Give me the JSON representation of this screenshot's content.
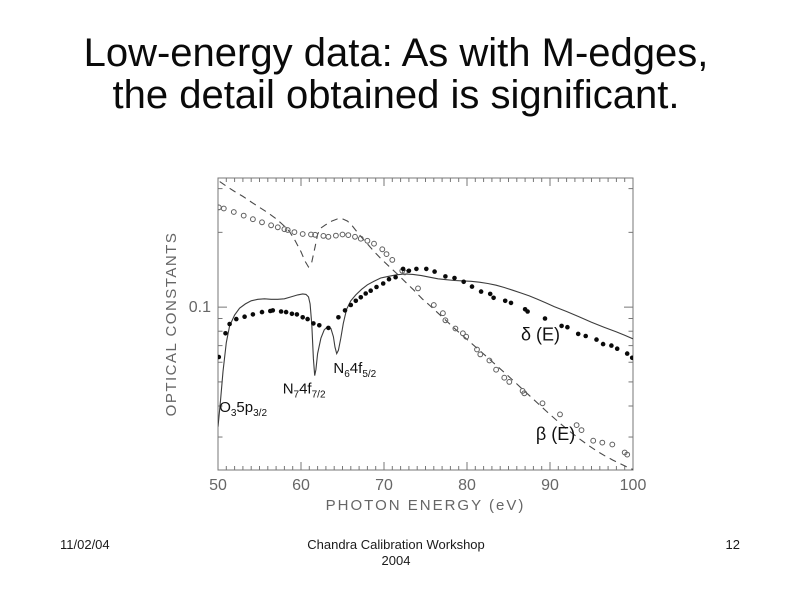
{
  "slide": {
    "title_line1": "Low-energy data: As with M-edges,",
    "title_line2": "the detail obtained is significant.",
    "footer": {
      "date": "11/02/04",
      "center_line1": "Chandra Calibration Workshop",
      "center_line2": "2004",
      "page_number": "12"
    }
  },
  "colors": {
    "axis": "#777777",
    "tick_label": "#666666",
    "axis_title": "#666666",
    "solid_line": "#3c3c3c",
    "dashed_line": "#4a4a4a",
    "filled_marker": "#0a0a0a",
    "open_marker": "#5f5f5f",
    "annotation_text": "#111111"
  },
  "chart_data": {
    "type": "line",
    "title": "",
    "xlabel": "PHOTON ENERGY (eV)",
    "ylabel": "OPTICAL CONSTANTS",
    "xlim": [
      50,
      100
    ],
    "ylim": [
      0.0221,
      0.331
    ],
    "yscale": "log",
    "grid": false,
    "legend_position": "in-plot annotations",
    "x_major_ticks": [
      50,
      60,
      70,
      80,
      90,
      100
    ],
    "x_major_tick_labels": [
      "50",
      "60",
      "70",
      "80",
      "90",
      "100"
    ],
    "x_minor_step": 1,
    "y_major_ticks": [
      0.1
    ],
    "y_major_tick_labels": [
      "0.1"
    ],
    "y_minor_ticks": [
      0.03,
      0.04,
      0.05,
      0.06,
      0.07,
      0.08,
      0.09,
      0.2,
      0.3
    ],
    "series": [
      {
        "name": "beta-model",
        "label": "β(E) model (dashed line)",
        "style": "line-dashed",
        "points": [
          [
            50.2,
            0.32
          ],
          [
            51,
            0.307
          ],
          [
            52,
            0.292
          ],
          [
            53,
            0.279
          ],
          [
            54,
            0.265
          ],
          [
            55,
            0.252
          ],
          [
            56,
            0.24
          ],
          [
            57,
            0.227
          ],
          [
            57.8,
            0.215
          ],
          [
            58.6,
            0.202
          ],
          [
            59.3,
            0.185
          ],
          [
            60,
            0.167
          ],
          [
            60.5,
            0.153
          ],
          [
            60.9,
            0.145
          ],
          [
            61.3,
            0.152
          ],
          [
            61.7,
            0.175
          ],
          [
            62,
            0.196
          ],
          [
            62.3,
            0.207
          ],
          [
            63,
            0.215
          ],
          [
            63.7,
            0.222
          ],
          [
            64.4,
            0.2265
          ],
          [
            65,
            0.2265
          ],
          [
            65.6,
            0.222
          ],
          [
            66.2,
            0.212
          ],
          [
            67,
            0.196
          ],
          [
            67.8,
            0.183
          ],
          [
            68.7,
            0.169
          ],
          [
            69.6,
            0.157
          ],
          [
            70.6,
            0.146
          ],
          [
            71.6,
            0.136
          ],
          [
            72.6,
            0.126
          ],
          [
            73.6,
            0.117
          ],
          [
            74.6,
            0.108
          ],
          [
            75.6,
            0.101
          ],
          [
            76.6,
            0.094
          ],
          [
            77.6,
            0.0875
          ],
          [
            78.6,
            0.0815
          ],
          [
            79.6,
            0.0762
          ],
          [
            80.6,
            0.0712
          ],
          [
            81.6,
            0.0665
          ],
          [
            82.6,
            0.0622
          ],
          [
            83.6,
            0.058
          ],
          [
            84.6,
            0.0542
          ],
          [
            85.6,
            0.0505
          ],
          [
            86.6,
            0.047
          ],
          [
            87.6,
            0.0438
          ],
          [
            88.6,
            0.0408
          ],
          [
            89.6,
            0.038
          ],
          [
            90.6,
            0.0355
          ],
          [
            91.6,
            0.0332
          ],
          [
            92.6,
            0.0312
          ],
          [
            93.6,
            0.0294
          ],
          [
            94.6,
            0.0278
          ],
          [
            95.6,
            0.0264
          ],
          [
            96.6,
            0.0252
          ],
          [
            97.6,
            0.0242
          ],
          [
            98.6,
            0.0233
          ],
          [
            99.3,
            0.0227
          ],
          [
            100,
            0.0222
          ]
        ]
      },
      {
        "name": "delta-model",
        "label": "δ(E) model (solid line)",
        "style": "line-solid",
        "points": [
          [
            50,
            0.033
          ],
          [
            50.3,
            0.042
          ],
          [
            50.6,
            0.055
          ],
          [
            51,
            0.072
          ],
          [
            51.4,
            0.084
          ],
          [
            52,
            0.093
          ],
          [
            52.6,
            0.099
          ],
          [
            53.3,
            0.103
          ],
          [
            54,
            0.106
          ],
          [
            54.8,
            0.1075
          ],
          [
            55.6,
            0.108
          ],
          [
            56.4,
            0.1075
          ],
          [
            57.2,
            0.1075
          ],
          [
            58,
            0.108
          ],
          [
            58.8,
            0.11
          ],
          [
            59.6,
            0.112
          ],
          [
            60.2,
            0.113
          ],
          [
            60.6,
            0.1125
          ],
          [
            60.9,
            0.11
          ],
          [
            61.1,
            0.103
          ],
          [
            61.3,
            0.085
          ],
          [
            61.5,
            0.062
          ],
          [
            61.65,
            0.053
          ],
          [
            61.8,
            0.056
          ],
          [
            62,
            0.065
          ],
          [
            62.4,
            0.075
          ],
          [
            62.8,
            0.081
          ],
          [
            63.2,
            0.0835
          ],
          [
            63.6,
            0.082
          ],
          [
            63.9,
            0.076
          ],
          [
            64.1,
            0.069
          ],
          [
            64.3,
            0.065
          ],
          [
            64.5,
            0.067
          ],
          [
            64.8,
            0.075
          ],
          [
            65.1,
            0.086
          ],
          [
            65.5,
            0.098
          ],
          [
            66,
            0.106
          ],
          [
            66.6,
            0.112
          ],
          [
            67.3,
            0.118
          ],
          [
            68,
            0.123
          ],
          [
            68.8,
            0.127
          ],
          [
            69.6,
            0.131
          ],
          [
            70.5,
            0.133
          ],
          [
            71.5,
            0.135
          ],
          [
            72.5,
            0.136
          ],
          [
            73.5,
            0.1355
          ],
          [
            74.5,
            0.134
          ],
          [
            75.5,
            0.132
          ],
          [
            76.5,
            0.13
          ],
          [
            77.5,
            0.129
          ],
          [
            78.5,
            0.128
          ],
          [
            79.5,
            0.1275
          ],
          [
            80.5,
            0.127
          ],
          [
            81.5,
            0.126
          ],
          [
            82.5,
            0.1245
          ],
          [
            83.5,
            0.1225
          ],
          [
            84.5,
            0.12
          ],
          [
            85.5,
            0.117
          ],
          [
            86.5,
            0.114
          ],
          [
            87.5,
            0.111
          ],
          [
            88.5,
            0.1075
          ],
          [
            89.5,
            0.104
          ],
          [
            90.5,
            0.1005
          ],
          [
            92,
            0.096
          ],
          [
            93.5,
            0.0915
          ],
          [
            95,
            0.087
          ],
          [
            96.5,
            0.083
          ],
          [
            98,
            0.0795
          ],
          [
            99,
            0.077
          ],
          [
            100,
            0.0745
          ]
        ]
      },
      {
        "name": "beta-measured",
        "label": "β(E) measured (open circles)",
        "style": "scatter-open",
        "points": [
          [
            50.1,
            0.252
          ],
          [
            50.7,
            0.2495
          ],
          [
            51.9,
            0.2415
          ],
          [
            53.1,
            0.2335
          ],
          [
            54.2,
            0.226
          ],
          [
            55.3,
            0.2195
          ],
          [
            56.4,
            0.2135
          ],
          [
            57.2,
            0.2095
          ],
          [
            58,
            0.206
          ],
          [
            58.4,
            0.2045
          ],
          [
            59.2,
            0.2005
          ],
          [
            60.2,
            0.197
          ],
          [
            61.2,
            0.196
          ],
          [
            61.7,
            0.1955
          ],
          [
            62.7,
            0.1935
          ],
          [
            63.3,
            0.192
          ],
          [
            64.2,
            0.194
          ],
          [
            65,
            0.196
          ],
          [
            65.7,
            0.195
          ],
          [
            66.5,
            0.192
          ],
          [
            67.2,
            0.1885
          ],
          [
            68,
            0.185
          ],
          [
            68.8,
            0.18
          ],
          [
            69.8,
            0.171
          ],
          [
            70.3,
            0.1635
          ],
          [
            71,
            0.155
          ],
          [
            72.2,
            0.14
          ],
          [
            72.5,
            0.138
          ],
          [
            74.1,
            0.119
          ],
          [
            76,
            0.102
          ],
          [
            77.1,
            0.0945
          ],
          [
            77.4,
            0.0885
          ],
          [
            78.6,
            0.082
          ],
          [
            79.5,
            0.0785
          ],
          [
            79.9,
            0.076
          ],
          [
            81.2,
            0.0675
          ],
          [
            81.6,
            0.0645
          ],
          [
            82.7,
            0.061
          ],
          [
            83.5,
            0.056
          ],
          [
            84.5,
            0.052
          ],
          [
            85.1,
            0.05
          ],
          [
            86.7,
            0.046
          ],
          [
            86.9,
            0.045
          ],
          [
            89.1,
            0.041
          ],
          [
            91.2,
            0.037
          ],
          [
            93.2,
            0.0335
          ],
          [
            93.8,
            0.032
          ],
          [
            95.2,
            0.029
          ],
          [
            96.3,
            0.0285
          ],
          [
            97.5,
            0.028
          ],
          [
            99,
            0.026
          ],
          [
            99.3,
            0.0255
          ]
        ]
      },
      {
        "name": "delta-measured",
        "label": "δ(E) measured (filled circles)",
        "style": "scatter-filled",
        "points": [
          [
            50.1,
            0.063
          ],
          [
            50.9,
            0.0785
          ],
          [
            51.4,
            0.0855
          ],
          [
            52.2,
            0.0895
          ],
          [
            53.2,
            0.0915
          ],
          [
            54.2,
            0.0935
          ],
          [
            55.3,
            0.0955
          ],
          [
            56.3,
            0.0965
          ],
          [
            56.6,
            0.097
          ],
          [
            57.6,
            0.096
          ],
          [
            58.2,
            0.0955
          ],
          [
            58.9,
            0.094
          ],
          [
            59.5,
            0.0935
          ],
          [
            60.2,
            0.091
          ],
          [
            60.8,
            0.0895
          ],
          [
            61.5,
            0.086
          ],
          [
            62.2,
            0.0845
          ],
          [
            63.3,
            0.0825
          ],
          [
            64.5,
            0.091
          ],
          [
            65.3,
            0.097
          ],
          [
            66,
            0.102
          ],
          [
            66.6,
            0.106
          ],
          [
            67.2,
            0.1095
          ],
          [
            67.8,
            0.1135
          ],
          [
            68.4,
            0.1165
          ],
          [
            69.1,
            0.1205
          ],
          [
            69.9,
            0.1245
          ],
          [
            70.6,
            0.1295
          ],
          [
            71.4,
            0.132
          ],
          [
            72.3,
            0.1425
          ],
          [
            73,
            0.14
          ],
          [
            73.9,
            0.1425
          ],
          [
            75.1,
            0.1425
          ],
          [
            76.1,
            0.139
          ],
          [
            77.4,
            0.133
          ],
          [
            78.5,
            0.131
          ],
          [
            79.6,
            0.1265
          ],
          [
            80.6,
            0.121
          ],
          [
            81.7,
            0.1155
          ],
          [
            82.8,
            0.113
          ],
          [
            83.2,
            0.109
          ],
          [
            84.6,
            0.106
          ],
          [
            85.3,
            0.104
          ],
          [
            87,
            0.098
          ],
          [
            87.3,
            0.096
          ],
          [
            89.4,
            0.09
          ],
          [
            91.4,
            0.084
          ],
          [
            92.1,
            0.083
          ],
          [
            93.4,
            0.078
          ],
          [
            94.3,
            0.0765
          ],
          [
            95.6,
            0.074
          ],
          [
            96.4,
            0.071
          ],
          [
            97.4,
            0.07
          ],
          [
            98.1,
            0.068
          ],
          [
            99.3,
            0.065
          ],
          [
            99.9,
            0.0625
          ]
        ]
      }
    ],
    "annotations": [
      {
        "id": "edge-o3-5p32",
        "x": 50.15,
        "y": 0.0378,
        "font": 15,
        "parts": [
          {
            "t": "O"
          },
          {
            "t": "3",
            "sub": true
          },
          {
            "t": "5p"
          },
          {
            "t": "3/2",
            "sub": true
          }
        ]
      },
      {
        "id": "edge-n7-4f72",
        "x": 57.8,
        "y": 0.045,
        "font": 15,
        "parts": [
          {
            "t": "N"
          },
          {
            "t": "7",
            "sub": true
          },
          {
            "t": "4f"
          },
          {
            "t": "7/2",
            "sub": true
          }
        ]
      },
      {
        "id": "edge-n6-4f52",
        "x": 63.9,
        "y": 0.0543,
        "font": 15,
        "parts": [
          {
            "t": "N"
          },
          {
            "t": "6",
            "sub": true
          },
          {
            "t": "4f"
          },
          {
            "t": "5/2",
            "sub": true
          }
        ]
      },
      {
        "id": "delta-of-E",
        "x": 86.5,
        "y": 0.0735,
        "font": 18,
        "parts": [
          {
            "t": "δ (E)"
          }
        ]
      },
      {
        "id": "beta-of-E",
        "x": 88.3,
        "y": 0.0292,
        "font": 18,
        "parts": [
          {
            "t": "β (E)"
          }
        ]
      }
    ]
  }
}
